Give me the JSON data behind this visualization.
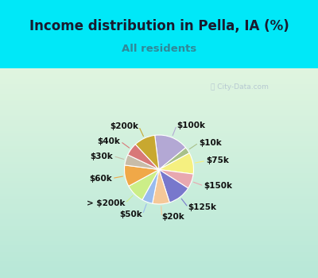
{
  "title": "Income distribution in Pella, IA (%)",
  "subtitle": "All residents",
  "watermark": "ⓘ City-Data.com",
  "labels": [
    "$100k",
    "$10k",
    "$75k",
    "$150k",
    "$125k",
    "$20k",
    "$50k",
    "> $200k",
    "$60k",
    "$30k",
    "$40k",
    "$200k"
  ],
  "values": [
    16,
    3,
    10,
    7,
    11,
    8,
    5,
    9,
    10,
    5,
    6,
    10
  ],
  "colors": [
    "#b3a8d4",
    "#a8c08a",
    "#f5f080",
    "#e8a8b0",
    "#7878cc",
    "#f5c898",
    "#99bbee",
    "#ccee88",
    "#f0a848",
    "#c8bca8",
    "#d87878",
    "#c8a830"
  ],
  "bg_color_top": "#c8f0e8",
  "bg_color_bot": "#d8f0d0",
  "title_bg": "#00e8f8",
  "title_color": "#1a1a2e",
  "subtitle_color": "#308898",
  "label_fontsize": 7.5,
  "title_fontsize": 12,
  "subtitle_fontsize": 9.5,
  "startangle": 97
}
